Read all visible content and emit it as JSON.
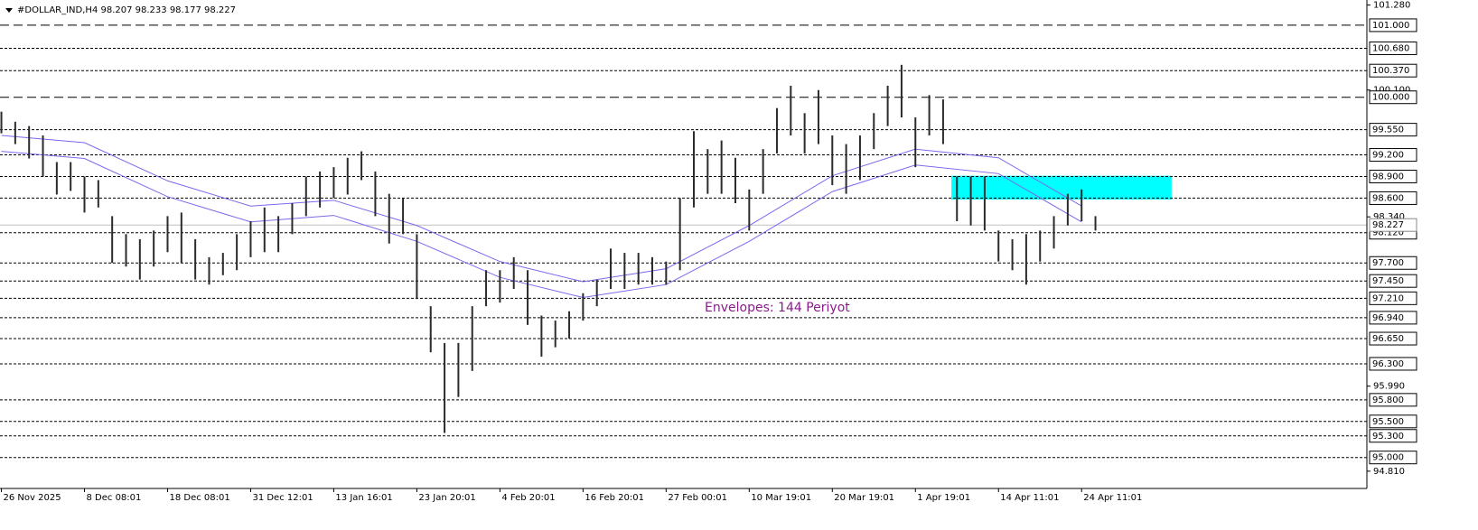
{
  "chart_data": {
    "type": "ohlc",
    "title": "#DOLLAR_IND,H4  98.207 98.233 98.177 98.227",
    "annotation": "Envelopes: 144 Periyot",
    "xlim": [
      -0.1,
      98.6
    ],
    "ylim": [
      94.57,
      101.35
    ],
    "xticks": [
      {
        "value": 0,
        "label": "26 Nov 2025"
      },
      {
        "value": 6,
        "label": "8 Dec 08:01"
      },
      {
        "value": 12,
        "label": "18 Dec 08:01"
      },
      {
        "value": 18,
        "label": "31 Dec 12:01"
      },
      {
        "value": 24,
        "label": "13 Jan 16:01"
      },
      {
        "value": 30,
        "label": "23 Jan 20:01"
      },
      {
        "value": 36,
        "label": "4 Feb 20:01"
      },
      {
        "value": 42,
        "label": "16 Feb 20:01"
      },
      {
        "value": 48,
        "label": "27 Feb 00:01"
      },
      {
        "value": 54,
        "label": "10 Mar 19:01"
      },
      {
        "value": 60,
        "label": "20 Mar 19:01"
      },
      {
        "value": 66,
        "label": "1 Apr 19:01"
      },
      {
        "value": 72,
        "label": "14 Apr 11:01"
      },
      {
        "value": 78,
        "label": "24 Apr 11:01"
      }
    ],
    "yticks": [
      {
        "value": 101.28,
        "label": "101.280"
      },
      {
        "value": 100.1,
        "label": "100.100"
      },
      {
        "value": 98.34,
        "label": "98.340"
      },
      {
        "value": 95.99,
        "label": "95.990"
      },
      {
        "value": 94.81,
        "label": "94.810"
      }
    ],
    "levels": [
      {
        "value": 101,
        "label": "101.000",
        "style": "dashed"
      },
      {
        "value": 100.68,
        "label": "100.680",
        "style": "dotted"
      },
      {
        "value": 100.37,
        "label": "100.370",
        "style": "dotted"
      },
      {
        "value": 100,
        "label": "100.000",
        "style": "dashed"
      },
      {
        "value": 99.55,
        "label": "99.550",
        "style": "dotted"
      },
      {
        "value": 99.2,
        "label": "99.200",
        "style": "dotted"
      },
      {
        "value": 98.9,
        "label": "98.900",
        "style": "dotted"
      },
      {
        "value": 98.6,
        "label": "98.600",
        "style": "dotted"
      },
      {
        "value": 98.12,
        "label": "98.120",
        "style": "dotted"
      },
      {
        "value": 97.7,
        "label": "97.700",
        "style": "dotted"
      },
      {
        "value": 97.45,
        "label": "97.450",
        "style": "dotted"
      },
      {
        "value": 97.21,
        "label": "97.210",
        "style": "dotted"
      },
      {
        "value": 96.94,
        "label": "96.940",
        "style": "dotted"
      },
      {
        "value": 96.65,
        "label": "96.650",
        "style": "dotted"
      },
      {
        "value": 96.3,
        "label": "96.300",
        "style": "dotted"
      },
      {
        "value": 95.8,
        "label": "95.800",
        "style": "dotted"
      },
      {
        "value": 95.5,
        "label": "95.500",
        "style": "dotted"
      },
      {
        "value": 95.3,
        "label": "95.300",
        "style": "dotted"
      },
      {
        "value": 95,
        "label": "95.000",
        "style": "dotted"
      }
    ],
    "current_price": 98.227,
    "bar_color": "#2b2b2b",
    "bars": {
      "high": [
        99.8,
        99.66,
        99.6,
        99.47,
        99.1,
        99.1,
        98.9,
        98.85,
        98.35,
        98.1,
        98.03,
        98.15,
        98.35,
        98.4,
        98.03,
        97.78,
        97.84,
        98.1,
        98.28,
        98.47,
        98.35,
        98.53,
        98.9,
        98.97,
        99.03,
        99.16,
        99.25,
        98.97,
        98.66,
        98.6,
        98.1,
        97.1,
        96.59,
        96.59,
        97.1,
        97.6,
        97.6,
        97.78,
        97.6,
        96.97,
        96.9,
        97.03,
        97.28,
        97.47,
        97.9,
        97.84,
        97.84,
        97.78,
        97.72,
        98.6,
        99.53,
        99.28,
        99.4,
        99.16,
        98.72,
        99.28,
        99.85,
        100.16,
        99.78,
        100.1,
        99.47,
        99.35,
        99.47,
        99.78,
        100.16,
        100.45,
        99.72,
        100.03,
        99.97,
        98.9,
        98.9,
        98.9,
        98.15,
        98.03,
        98.1,
        98.15,
        98.35,
        98.66,
        98.72,
        98.35
      ],
      "low": [
        99.5,
        99.35,
        99.15,
        98.9,
        98.65,
        98.7,
        98.4,
        98.47,
        97.7,
        97.65,
        97.47,
        97.65,
        97.85,
        97.7,
        97.47,
        97.4,
        97.53,
        97.6,
        97.78,
        97.85,
        97.85,
        98.1,
        98.35,
        98.47,
        98.6,
        98.65,
        98.85,
        98.35,
        97.97,
        98.1,
        97.2,
        96.46,
        95.34,
        95.84,
        96.2,
        97.1,
        97.15,
        97.34,
        96.84,
        96.4,
        96.53,
        96.65,
        96.9,
        97.1,
        97.34,
        97.34,
        97.4,
        97.4,
        97.4,
        97.6,
        98.47,
        98.66,
        98.66,
        98.53,
        98.15,
        98.66,
        99.22,
        99.47,
        99.22,
        99.35,
        98.78,
        98.66,
        98.85,
        99.28,
        99.6,
        99.72,
        99.03,
        99.47,
        99.35,
        98.28,
        98.22,
        98.15,
        97.72,
        97.6,
        97.4,
        97.72,
        97.9,
        98.22,
        98.28,
        98.15
      ]
    },
    "series": [
      {
        "color": "#7b68ee",
        "x": [
          0,
          6,
          12,
          18,
          24,
          30,
          36,
          42,
          48,
          54,
          60,
          66,
          72,
          78
        ],
        "values": [
          99.47,
          99.37,
          98.84,
          98.49,
          98.57,
          98.22,
          97.72,
          97.44,
          97.62,
          98.22,
          98.91,
          99.28,
          99.16,
          98.49
        ]
      },
      {
        "color": "#7b68ee",
        "x": [
          0,
          6,
          12,
          18,
          24,
          30,
          36,
          42,
          48,
          54,
          60,
          66,
          72,
          78
        ],
        "values": [
          99.25,
          99.15,
          98.62,
          98.27,
          98.36,
          98.0,
          97.5,
          97.22,
          97.4,
          98.0,
          98.69,
          99.06,
          98.94,
          98.27
        ]
      }
    ],
    "zone": {
      "x": [
        68.6,
        84.5
      ],
      "y": [
        98.58,
        98.91
      ],
      "color": "#00ffff"
    }
  }
}
